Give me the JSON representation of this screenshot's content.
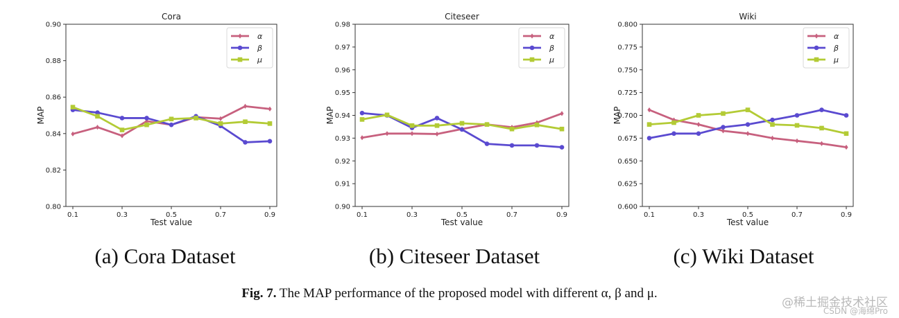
{
  "charts": [
    {
      "caption": "(a)  Cora Dataset",
      "chart_data": {
        "type": "line",
        "title": "Cora",
        "xlabel": "Test value",
        "ylabel": "MAP",
        "x": [
          0.1,
          0.2,
          0.3,
          0.4,
          0.5,
          0.6,
          0.7,
          0.8,
          0.9
        ],
        "xticks": [
          "0.1",
          "0.3",
          "0.5",
          "0.7",
          "0.9"
        ],
        "yticks": [
          "0.80",
          "0.82",
          "0.84",
          "0.86",
          "0.88",
          "0.90"
        ],
        "ylim": [
          0.8,
          0.9
        ],
        "legend": "top-right",
        "series": [
          {
            "name": "α",
            "color": "#c7607e",
            "marker": "diamond",
            "values": [
              0.8398,
              0.8435,
              0.8388,
              0.8468,
              0.8448,
              0.849,
              0.8482,
              0.855,
              0.8535
            ]
          },
          {
            "name": "β",
            "color": "#5a4ad0",
            "marker": "circle",
            "values": [
              0.853,
              0.8515,
              0.8485,
              0.8485,
              0.8448,
              0.8495,
              0.8442,
              0.8352,
              0.8358
            ]
          },
          {
            "name": "μ",
            "color": "#b3cb35",
            "marker": "square",
            "values": [
              0.8545,
              0.8495,
              0.842,
              0.8448,
              0.848,
              0.8485,
              0.8455,
              0.8465,
              0.8455
            ]
          }
        ]
      }
    },
    {
      "caption": "(b)  Citeseer Dataset",
      "chart_data": {
        "type": "line",
        "title": "Citeseer",
        "xlabel": "Test value",
        "ylabel": "MAP",
        "x": [
          0.1,
          0.2,
          0.3,
          0.4,
          0.5,
          0.6,
          0.7,
          0.8,
          0.9
        ],
        "xticks": [
          "0.1",
          "0.3",
          "0.5",
          "0.7",
          "0.9"
        ],
        "yticks": [
          "0.90",
          "0.91",
          "0.92",
          "0.93",
          "0.94",
          "0.95",
          "0.96",
          "0.97",
          "0.98"
        ],
        "ylim": [
          0.9,
          0.98
        ],
        "legend": "top-right",
        "series": [
          {
            "name": "α",
            "color": "#c7607e",
            "marker": "diamond",
            "values": [
              0.9302,
              0.932,
              0.932,
              0.9318,
              0.934,
              0.936,
              0.9348,
              0.9368,
              0.9408
            ]
          },
          {
            "name": "β",
            "color": "#5a4ad0",
            "marker": "circle",
            "values": [
              0.941,
              0.94,
              0.9345,
              0.9388,
              0.9338,
              0.9275,
              0.9268,
              0.9268,
              0.926
            ]
          },
          {
            "name": "μ",
            "color": "#b3cb35",
            "marker": "square",
            "values": [
              0.9382,
              0.9402,
              0.9355,
              0.9355,
              0.9365,
              0.936,
              0.934,
              0.9358,
              0.934
            ]
          }
        ]
      }
    },
    {
      "caption": "(c)  Wiki Dataset",
      "chart_data": {
        "type": "line",
        "title": "Wiki",
        "xlabel": "Test value",
        "ylabel": "MAP",
        "x": [
          0.1,
          0.2,
          0.3,
          0.4,
          0.5,
          0.6,
          0.7,
          0.8,
          0.9
        ],
        "xticks": [
          "0.1",
          "0.3",
          "0.5",
          "0.7",
          "0.9"
        ],
        "yticks": [
          "0.600",
          "0.625",
          "0.650",
          "0.675",
          "0.700",
          "0.725",
          "0.750",
          "0.775",
          "0.800"
        ],
        "ylim": [
          0.6,
          0.8
        ],
        "legend": "top-right",
        "series": [
          {
            "name": "α",
            "color": "#c7607e",
            "marker": "diamond",
            "values": [
              0.706,
              0.695,
              0.69,
              0.683,
              0.68,
              0.675,
              0.672,
              0.669,
              0.665
            ]
          },
          {
            "name": "β",
            "color": "#5a4ad0",
            "marker": "circle",
            "values": [
              0.675,
              0.68,
              0.68,
              0.687,
              0.69,
              0.695,
              0.7,
              0.706,
              0.7
            ]
          },
          {
            "name": "μ",
            "color": "#b3cb35",
            "marker": "square",
            "values": [
              0.69,
              0.692,
              0.7,
              0.702,
              0.706,
              0.69,
              0.689,
              0.686,
              0.68
            ]
          }
        ]
      }
    }
  ],
  "figure_caption": {
    "label": "Fig. 7.",
    "text": "The MAP performance of the proposed model with different α, β and μ."
  },
  "watermark": {
    "line1": "@稀土掘金技术社区",
    "line2": "CSDN @海绵Pro"
  }
}
